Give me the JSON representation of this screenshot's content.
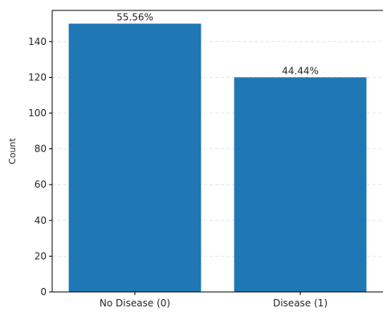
{
  "chart_data": {
    "type": "bar",
    "categories": [
      "No Disease (0)",
      "Disease (1)"
    ],
    "values": [
      150,
      120
    ],
    "data_labels": [
      "55.56%",
      "44.44%"
    ],
    "title": "",
    "xlabel": "",
    "ylabel": "Count",
    "ylim": [
      0,
      150
    ],
    "yticks": [
      0,
      20,
      40,
      60,
      80,
      100,
      120,
      140
    ],
    "grid": "y-dashed",
    "bar_color": "#1f77b4",
    "grid_color": "#dddddd"
  }
}
